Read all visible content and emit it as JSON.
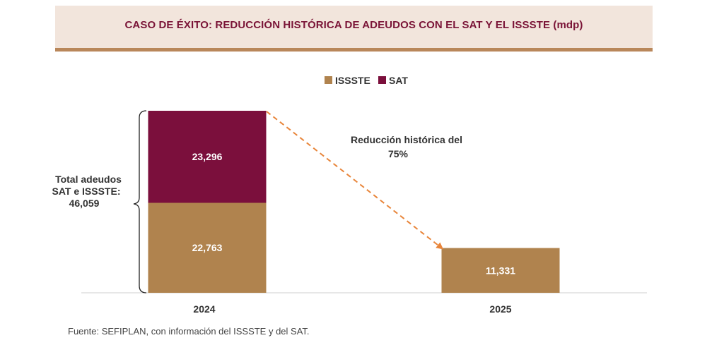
{
  "title": "CASO DE ÉXITO: REDUCCIÓN HISTÓRICA DE ADEUDOS CON EL SAT Y EL ISSSTE (mdp)",
  "footer": "Fuente: SEFIPLAN, con información del ISSSTE y del SAT.",
  "colors": {
    "issste": "#b0834e",
    "sat": "#7b0f3c",
    "arrow": "#e8853a",
    "title": "#7a1437"
  },
  "chart_data": {
    "type": "bar",
    "stacked": true,
    "title": "CASO DE ÉXITO: REDUCCIÓN HISTÓRICA DE ADEUDOS CON EL SAT Y EL ISSSTE (mdp)",
    "categories": [
      "2024",
      "2025"
    ],
    "series": [
      {
        "name": "ISSSTE",
        "values": [
          22763,
          11331
        ],
        "labels": [
          "22,763",
          "11,331"
        ]
      },
      {
        "name": "SAT",
        "values": [
          23296,
          0
        ],
        "labels": [
          "23,296",
          ""
        ]
      }
    ],
    "legend": [
      "ISSSTE",
      "SAT"
    ],
    "legend_position": "top-center",
    "ylim": [
      0,
      46059
    ],
    "annotations": {
      "total_label": [
        "Total adeudos",
        "SAT e ISSSTE:",
        "46,059"
      ],
      "reduction_label": [
        "Reducción histórica del",
        "75%"
      ]
    },
    "xlabel": "",
    "ylabel": ""
  }
}
